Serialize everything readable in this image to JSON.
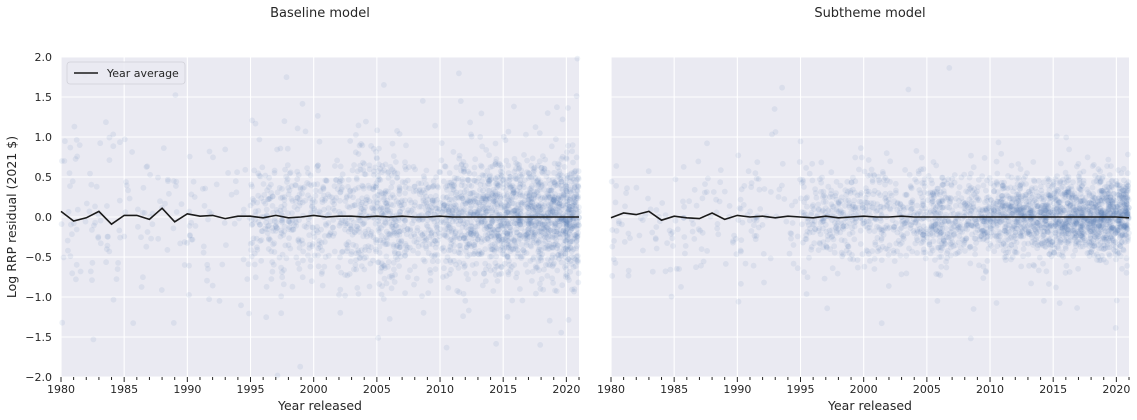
{
  "chart_data": [
    {
      "type": "scatter",
      "title": "Baseline model",
      "xlabel": "Year released",
      "ylabel": "Log RRP residual (2021 $)",
      "xlim": [
        1980,
        2021
      ],
      "ylim": [
        -2.0,
        2.0
      ],
      "xticks": [
        1980,
        1985,
        1990,
        1995,
        2000,
        2005,
        2010,
        2015,
        2020
      ],
      "xtick_labels": [
        "1980",
        "1985",
        "1990",
        "1995",
        "2000",
        "2005",
        "2010",
        "2015",
        "2020"
      ],
      "yticks": [
        -2.0,
        -1.5,
        -1.0,
        -0.5,
        0.0,
        0.5,
        1.0,
        1.5,
        2.0
      ],
      "ytick_labels": [
        "−2.0",
        "−1.5",
        "−1.0",
        "−0.5",
        "0.0",
        "0.5",
        "1.0",
        "1.5",
        "2.0"
      ],
      "grid": true,
      "legend": {
        "placement": "top-left",
        "entries": [
          "Year average"
        ]
      },
      "scatter_color": "#4c72b0",
      "line_color": "#1a1a1a",
      "scatter_spread": 0.36,
      "series": [
        {
          "name": "Year average",
          "type": "line",
          "x": [
            1980,
            1981,
            1982,
            1983,
            1984,
            1985,
            1986,
            1987,
            1988,
            1989,
            1990,
            1991,
            1992,
            1993,
            1994,
            1995,
            1996,
            1997,
            1998,
            1999,
            2000,
            2001,
            2002,
            2003,
            2004,
            2005,
            2006,
            2007,
            2008,
            2009,
            2010,
            2011,
            2012,
            2013,
            2014,
            2015,
            2016,
            2017,
            2018,
            2019,
            2020,
            2021
          ],
          "y": [
            0.07,
            -0.05,
            -0.01,
            0.07,
            -0.09,
            0.02,
            0.02,
            -0.03,
            0.11,
            -0.06,
            0.04,
            0.01,
            0.02,
            -0.02,
            0.01,
            0.01,
            -0.01,
            0.02,
            -0.01,
            0.0,
            0.02,
            0.0,
            0.01,
            0.01,
            0.0,
            0.01,
            0.0,
            0.01,
            0.0,
            0.0,
            0.01,
            0.0,
            0.0,
            0.0,
            0.0,
            0.0,
            0.0,
            0.0,
            0.0,
            0.0,
            0.0,
            0.0
          ]
        }
      ]
    },
    {
      "type": "scatter",
      "title": "Subtheme model",
      "xlabel": "Year released",
      "ylabel": "",
      "xlim": [
        1980,
        2021
      ],
      "ylim": [
        -2.0,
        2.0
      ],
      "xticks": [
        1980,
        1985,
        1990,
        1995,
        2000,
        2005,
        2010,
        2015,
        2020
      ],
      "xtick_labels": [
        "1980",
        "1985",
        "1990",
        "1995",
        "2000",
        "2005",
        "2010",
        "2015",
        "2020"
      ],
      "yticks": [
        -2.0,
        -1.5,
        -1.0,
        -0.5,
        0.0,
        0.5,
        1.0,
        1.5,
        2.0
      ],
      "grid": true,
      "scatter_color": "#4c72b0",
      "line_color": "#1a1a1a",
      "scatter_spread": 0.24,
      "series": [
        {
          "name": "Year average",
          "type": "line",
          "x": [
            1980,
            1981,
            1982,
            1983,
            1984,
            1985,
            1986,
            1987,
            1988,
            1989,
            1990,
            1991,
            1992,
            1993,
            1994,
            1995,
            1996,
            1997,
            1998,
            1999,
            2000,
            2001,
            2002,
            2003,
            2004,
            2005,
            2006,
            2007,
            2008,
            2009,
            2010,
            2011,
            2012,
            2013,
            2014,
            2015,
            2016,
            2017,
            2018,
            2019,
            2020,
            2021
          ],
          "y": [
            -0.01,
            0.05,
            0.03,
            0.07,
            -0.04,
            0.01,
            -0.01,
            -0.02,
            0.05,
            -0.03,
            0.02,
            0.0,
            0.01,
            -0.01,
            0.01,
            0.0,
            -0.01,
            0.01,
            -0.01,
            0.0,
            0.01,
            0.0,
            0.0,
            0.01,
            0.0,
            0.0,
            0.0,
            0.0,
            0.0,
            0.0,
            0.0,
            0.0,
            0.0,
            0.0,
            0.0,
            0.0,
            0.0,
            0.0,
            0.0,
            0.0,
            0.0,
            -0.01
          ]
        }
      ]
    }
  ]
}
